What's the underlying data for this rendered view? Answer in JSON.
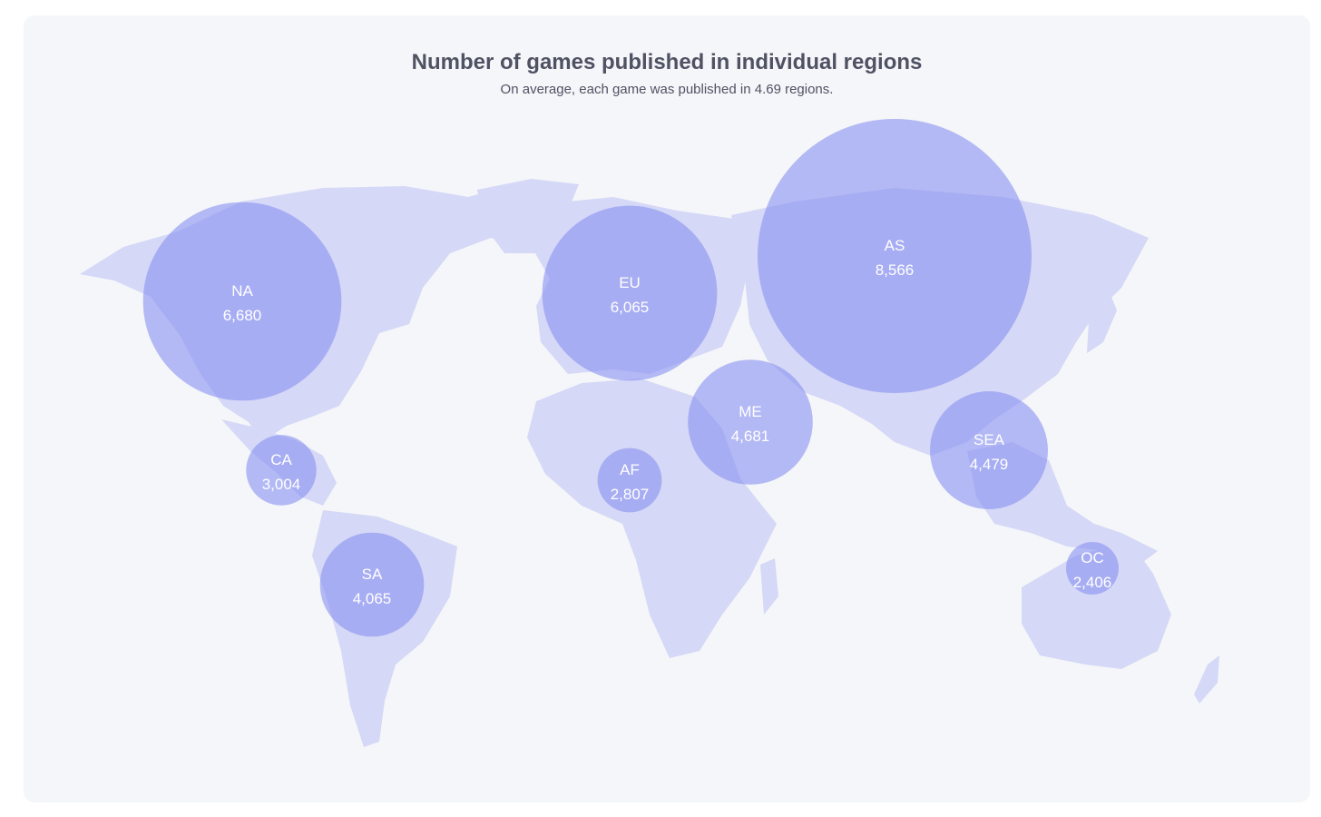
{
  "chart_data": {
    "type": "bubble-map",
    "title": "Number of games published in individual regions",
    "subtitle": "On average, each game was published in 4.69 regions.",
    "colors": {
      "bubble": "#8b93f0",
      "land": "#d5d8f6",
      "background": "#f5f6f9",
      "text": "#4f5263"
    },
    "regions": [
      {
        "code": "NA",
        "value": 6680,
        "display": "6,680"
      },
      {
        "code": "CA",
        "value": 3004,
        "display": "3,004"
      },
      {
        "code": "SA",
        "value": 4065,
        "display": "4,065"
      },
      {
        "code": "EU",
        "value": 6065,
        "display": "6,065"
      },
      {
        "code": "AF",
        "value": 2807,
        "display": "2,807"
      },
      {
        "code": "ME",
        "value": 4681,
        "display": "4,681"
      },
      {
        "code": "AS",
        "value": 8566,
        "display": "8,566"
      },
      {
        "code": "SEA",
        "value": 4479,
        "display": "4,479"
      },
      {
        "code": "OC",
        "value": 2406,
        "display": "2,406"
      }
    ]
  }
}
